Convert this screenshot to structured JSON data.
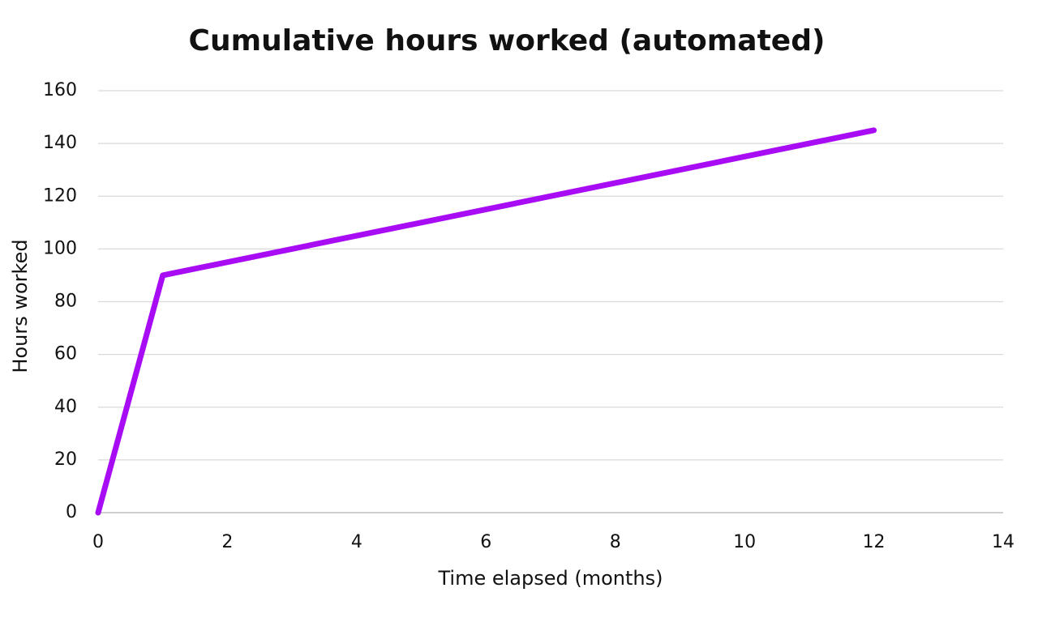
{
  "chart_data": {
    "type": "line",
    "title": "Cumulative hours worked (automated)",
    "x_label": "Time elapsed (months)",
    "y_label": "Hours worked",
    "x": [
      0,
      1,
      12
    ],
    "series": [
      {
        "name": "Cumulative hours worked",
        "color": "#a80cf5",
        "values": [
          0,
          90,
          145
        ]
      }
    ],
    "xlim": [
      0,
      14
    ],
    "xticks": [
      0,
      2,
      4,
      6,
      8,
      10,
      12,
      14
    ],
    "ylim": [
      0,
      160
    ],
    "yticks": [
      0,
      20,
      40,
      60,
      80,
      100,
      120,
      140,
      160
    ],
    "grid": true
  }
}
